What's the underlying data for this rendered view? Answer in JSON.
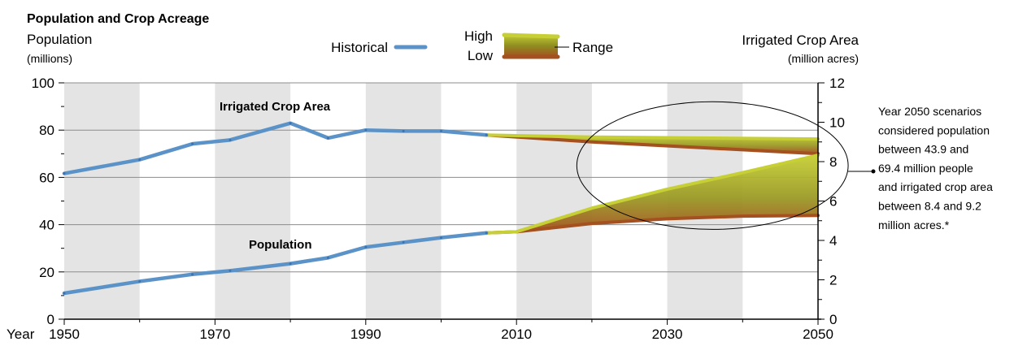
{
  "chart_data": {
    "type": "line",
    "title": "Population and Crop Acreage",
    "left_axis": {
      "title": "Population",
      "unit": "(millions)",
      "range": [
        0,
        100
      ],
      "ticks": [
        0,
        20,
        40,
        60,
        80,
        100
      ]
    },
    "right_axis": {
      "title": "Irrigated Crop Area",
      "unit": "(million acres)",
      "range": [
        0,
        12
      ],
      "ticks": [
        0,
        2,
        4,
        6,
        8,
        10,
        12
      ]
    },
    "x_axis": {
      "prefix": "Year",
      "range": [
        1950,
        2050
      ],
      "ticks": [
        1950,
        1970,
        1990,
        2010,
        2030,
        2050
      ]
    },
    "legend": {
      "historical": "Historical",
      "high": "High",
      "low": "Low",
      "range": "Range",
      "position": "top"
    },
    "series": [
      {
        "name": "Irrigated Crop Area",
        "axis": "right",
        "historical": [
          [
            1950,
            7.4
          ],
          [
            1960,
            8.1
          ],
          [
            1967,
            8.9
          ],
          [
            1972,
            9.1
          ],
          [
            1980,
            9.95
          ],
          [
            1985,
            9.2
          ],
          [
            1990,
            9.6
          ],
          [
            1995,
            9.55
          ],
          [
            2000,
            9.55
          ],
          [
            2006,
            9.35
          ]
        ],
        "projection_high": [
          [
            2006,
            9.35
          ],
          [
            2020,
            9.25
          ],
          [
            2050,
            9.15
          ]
        ],
        "projection_low": [
          [
            2006,
            9.35
          ],
          [
            2020,
            9.0
          ],
          [
            2050,
            8.4
          ]
        ]
      },
      {
        "name": "Population",
        "axis": "left",
        "historical": [
          [
            1950,
            11
          ],
          [
            1960,
            16
          ],
          [
            1967,
            19
          ],
          [
            1972,
            20.5
          ],
          [
            1980,
            23.5
          ],
          [
            1985,
            26
          ],
          [
            1990,
            30.5
          ],
          [
            1995,
            32.5
          ],
          [
            2000,
            34.5
          ],
          [
            2006,
            36.5
          ]
        ],
        "projection_high": [
          [
            2006,
            36.5
          ],
          [
            2010,
            37
          ],
          [
            2020,
            47
          ],
          [
            2030,
            55
          ],
          [
            2040,
            62
          ],
          [
            2050,
            69.4
          ]
        ],
        "projection_low": [
          [
            2006,
            36.5
          ],
          [
            2010,
            37
          ],
          [
            2020,
            40.5
          ],
          [
            2030,
            42.5
          ],
          [
            2040,
            43.6
          ],
          [
            2050,
            43.9
          ]
        ]
      }
    ],
    "annotation": {
      "text_lines": [
        "Year 2050 scenarios",
        "considered population",
        "between 43.9 and",
        "69.4 million people",
        "and irrigated crop area",
        "between 8.4 and 9.2",
        "million acres.*"
      ],
      "ellipse_center": [
        2036,
        65
      ],
      "ellipse_radii": [
        18,
        27
      ]
    },
    "background_bands": [
      [
        1950,
        1960
      ],
      [
        1970,
        1980
      ],
      [
        1990,
        2000
      ],
      [
        2010,
        2020
      ],
      [
        2030,
        2040
      ]
    ],
    "grid": true,
    "colors": {
      "historical": "#5b93c8",
      "historical_dark": "#3d72b0",
      "high": "#c6cf35",
      "low": "#a4501f",
      "band": "#e4e4e4",
      "grid": "#8c8c8c"
    }
  }
}
